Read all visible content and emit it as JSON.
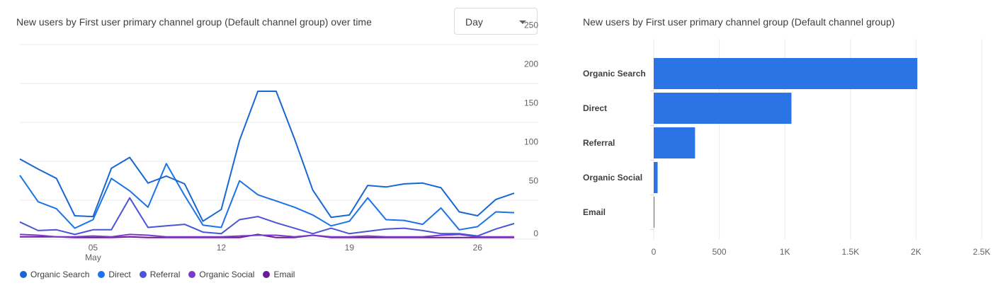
{
  "line_chart": {
    "title": "New users by First user primary channel group (Default channel group) over time",
    "period_select": {
      "value": "Day",
      "icon": "caret-down-icon"
    },
    "x_ticks": [
      {
        "day": 5,
        "label": "05",
        "sublabel": "May"
      },
      {
        "day": 12,
        "label": "12",
        "sublabel": ""
      },
      {
        "day": 19,
        "label": "19",
        "sublabel": ""
      },
      {
        "day": 26,
        "label": "26",
        "sublabel": ""
      }
    ],
    "y_ticks": [
      0,
      50,
      100,
      150,
      200,
      250
    ],
    "legend": [
      {
        "name": "Organic Search",
        "color": "#1967d2"
      },
      {
        "name": "Direct",
        "color": "#1a73e8"
      },
      {
        "name": "Referral",
        "color": "#4a54d6"
      },
      {
        "name": "Organic Social",
        "color": "#7c3ac9"
      },
      {
        "name": "Email",
        "color": "#6a1b9a"
      }
    ]
  },
  "bar_chart": {
    "title": "New users by First user primary channel group (Default channel group)",
    "x_ticks": [
      0,
      500,
      1000,
      1500,
      2000,
      2500
    ],
    "x_tick_labels": [
      "0",
      "500",
      "1K",
      "1.5K",
      "2K",
      "2.5K"
    ],
    "bar_color": "#2a74e6"
  },
  "chart_data": [
    {
      "type": "line",
      "title": "New users by First user primary channel group (Default channel group) over time",
      "x": [
        1,
        2,
        3,
        4,
        5,
        6,
        7,
        8,
        9,
        10,
        11,
        12,
        13,
        14,
        15,
        16,
        17,
        18,
        19,
        20,
        21,
        22,
        23,
        24,
        25,
        26,
        27,
        28
      ],
      "xlabel": "",
      "ylabel": "",
      "ylim": [
        0,
        250
      ],
      "grid": true,
      "legend_position": "bottom",
      "series": [
        {
          "name": "Organic Search",
          "color": "#1967d2",
          "values": [
            103,
            90,
            78,
            30,
            29,
            91,
            105,
            72,
            81,
            71,
            23,
            38,
            127,
            190,
            190,
            129,
            63,
            28,
            31,
            69,
            67,
            71,
            72,
            66,
            35,
            30,
            51,
            59
          ]
        },
        {
          "name": "Direct",
          "color": "#1a73e8",
          "values": [
            82,
            48,
            39,
            14,
            25,
            78,
            62,
            41,
            97,
            56,
            18,
            15,
            75,
            57,
            49,
            41,
            31,
            17,
            23,
            53,
            25,
            24,
            19,
            40,
            12,
            16,
            35,
            34
          ]
        },
        {
          "name": "Referral",
          "color": "#4a54d6",
          "values": [
            22,
            11,
            12,
            6,
            12,
            12,
            53,
            15,
            17,
            19,
            9,
            7,
            25,
            29,
            21,
            14,
            7,
            14,
            7,
            10,
            13,
            14,
            11,
            7,
            7,
            4,
            13,
            20
          ]
        },
        {
          "name": "Organic Social",
          "color": "#7c3ac9",
          "values": [
            6,
            5,
            3,
            3,
            4,
            3,
            6,
            5,
            3,
            3,
            3,
            3,
            4,
            5,
            5,
            3,
            5,
            3,
            3,
            4,
            3,
            3,
            3,
            5,
            6,
            3,
            3,
            3
          ]
        },
        {
          "name": "Email",
          "color": "#6a1b9a",
          "values": [
            3,
            3,
            3,
            2,
            2,
            2,
            3,
            2,
            2,
            2,
            2,
            2,
            2,
            6,
            2,
            2,
            5,
            2,
            2,
            2,
            2,
            2,
            2,
            2,
            2,
            2,
            2,
            2
          ]
        }
      ]
    },
    {
      "type": "bar",
      "orientation": "horizontal",
      "title": "New users by First user primary channel group (Default channel group)",
      "categories": [
        "Organic Search",
        "Direct",
        "Referral",
        "Organic Social",
        "Email"
      ],
      "values": [
        2010,
        1050,
        315,
        30,
        5
      ],
      "xlim": [
        0,
        2500
      ],
      "grid": true
    }
  ]
}
